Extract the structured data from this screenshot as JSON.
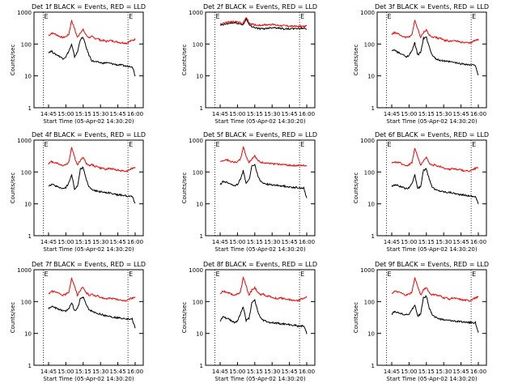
{
  "chart_data": [
    {
      "type": "line",
      "title": "Det 1f BLACK = Events, RED = LLD",
      "xlabel": "Start Time (05-Apr-02 14:30:20)",
      "ylabel": "Counts/sec",
      "log_y": true,
      "ylim": [
        1,
        1000
      ],
      "y_ticks": [
        "1",
        "10",
        "100",
        "1000"
      ],
      "x_ticks": [
        "14:45",
        "15:00",
        "15:15",
        "15:30",
        "15:45",
        "16:00"
      ],
      "dotted_lines": [
        0.085,
        0.86
      ],
      "edge_markers": [
        "E",
        "E"
      ],
      "series": [
        {
          "color": "#ff0000",
          "values": [
            180,
            220,
            210,
            190,
            170,
            160,
            170,
            200,
            550,
            300,
            160,
            230,
            280,
            190,
            160,
            170,
            150,
            150,
            130,
            130,
            120,
            130,
            125,
            120,
            115,
            110,
            110,
            105,
            120,
            130,
            140
          ]
        },
        {
          "color": "#000000",
          "values": [
            55,
            60,
            50,
            45,
            40,
            35,
            40,
            60,
            95,
            40,
            55,
            140,
            160,
            80,
            45,
            30,
            28,
            27,
            26,
            25,
            26,
            25,
            24,
            23,
            22,
            22,
            21,
            20,
            20,
            20,
            10
          ]
        }
      ]
    },
    {
      "type": "line",
      "title": "Det 2f BLACK = Events, RED = LLD",
      "xlabel": "Start Time (05-Apr-02 14:30:20)",
      "ylabel": "Counts/sec",
      "log_y": true,
      "ylim": [
        1,
        1000
      ],
      "y_ticks": [
        "1",
        "10",
        "100",
        "1000"
      ],
      "x_ticks": [
        "14:45",
        "15:00",
        "15:15",
        "15:30",
        "15:45",
        "16:00"
      ],
      "dotted_lines": [
        0.085,
        0.86
      ],
      "edge_markers": [
        "E",
        "E"
      ],
      "series": [
        {
          "color": "#ff0000",
          "values": [
            420,
            450,
            470,
            490,
            500,
            500,
            490,
            470,
            450,
            700,
            460,
            420,
            400,
            390,
            390,
            400,
            400,
            410,
            410,
            400,
            390,
            380,
            380,
            370,
            370,
            360,
            360,
            360,
            360,
            360,
            360
          ]
        },
        {
          "color": "#000000",
          "values": [
            380,
            400,
            420,
            440,
            460,
            460,
            450,
            420,
            400,
            620,
            400,
            360,
            330,
            310,
            300,
            300,
            310,
            320,
            330,
            330,
            320,
            310,
            300,
            300,
            300,
            300,
            300,
            310,
            310,
            310,
            300
          ]
        }
      ]
    },
    {
      "type": "line",
      "title": "Det 3f BLACK = Events, RED = LLD",
      "xlabel": "Start Time (05-Apr-02 14:30:20)",
      "ylabel": "Counts/sec",
      "log_y": true,
      "ylim": [
        1,
        1000
      ],
      "y_ticks": [
        "1",
        "10",
        "100",
        "1000"
      ],
      "x_ticks": [
        "14:45",
        "15:00",
        "15:15",
        "15:30",
        "15:45",
        "16:00"
      ],
      "dotted_lines": [
        0.085,
        0.86
      ],
      "edge_markers": [
        "E",
        "E"
      ],
      "series": [
        {
          "color": "#ff0000",
          "values": [
            200,
            230,
            210,
            190,
            170,
            160,
            170,
            200,
            550,
            300,
            160,
            230,
            280,
            190,
            160,
            170,
            150,
            150,
            130,
            130,
            120,
            130,
            125,
            120,
            115,
            110,
            110,
            105,
            120,
            130,
            140
          ]
        },
        {
          "color": "#000000",
          "values": [
            60,
            65,
            55,
            50,
            45,
            40,
            45,
            60,
            110,
            45,
            55,
            150,
            160,
            80,
            45,
            35,
            32,
            30,
            30,
            28,
            28,
            27,
            26,
            25,
            24,
            24,
            23,
            22,
            22,
            22,
            10
          ]
        }
      ]
    },
    {
      "type": "line",
      "title": "Det 4f BLACK = Events, RED = LLD",
      "xlabel": "Start Time (05-Apr-02 14:30:20)",
      "ylabel": "Counts/sec",
      "log_y": true,
      "ylim": [
        1,
        1000
      ],
      "y_ticks": [
        "1",
        "10",
        "100",
        "1000"
      ],
      "x_ticks": [
        "14:45",
        "15:00",
        "15:15",
        "15:30",
        "15:45",
        "16:00"
      ],
      "dotted_lines": [
        0.085,
        0.86
      ],
      "edge_markers": [
        "E",
        "E"
      ],
      "series": [
        {
          "color": "#ff0000",
          "values": [
            180,
            210,
            200,
            190,
            170,
            160,
            170,
            200,
            600,
            300,
            160,
            230,
            290,
            190,
            160,
            170,
            150,
            150,
            130,
            130,
            120,
            130,
            125,
            120,
            115,
            110,
            110,
            105,
            120,
            130,
            140
          ]
        },
        {
          "color": "#000000",
          "values": [
            35,
            40,
            38,
            35,
            32,
            30,
            32,
            45,
            80,
            30,
            35,
            120,
            140,
            60,
            35,
            28,
            26,
            25,
            24,
            23,
            23,
            22,
            21,
            20,
            19,
            19,
            18,
            18,
            17,
            17,
            10
          ]
        }
      ]
    },
    {
      "type": "line",
      "title": "Det 5f BLACK = Events, RED = LLD",
      "xlabel": "Start Time (05-Apr-02 14:30:20)",
      "ylabel": "Counts/sec",
      "log_y": true,
      "ylim": [
        1,
        1000
      ],
      "y_ticks": [
        "1",
        "10",
        "100",
        "1000"
      ],
      "x_ticks": [
        "14:45",
        "15:00",
        "15:15",
        "15:30",
        "15:45",
        "16:00"
      ],
      "dotted_lines": [
        0.085,
        0.86
      ],
      "edge_markers": [
        "E",
        "E"
      ],
      "series": [
        {
          "color": "#ff0000",
          "values": [
            200,
            230,
            240,
            230,
            210,
            200,
            210,
            250,
            600,
            320,
            200,
            260,
            330,
            230,
            200,
            200,
            190,
            185,
            180,
            180,
            175,
            175,
            170,
            165,
            165,
            160,
            160,
            160,
            160,
            160,
            160
          ]
        },
        {
          "color": "#000000",
          "values": [
            40,
            50,
            48,
            45,
            40,
            38,
            40,
            60,
            110,
            45,
            55,
            150,
            170,
            80,
            50,
            45,
            42,
            40,
            40,
            38,
            38,
            37,
            36,
            35,
            34,
            33,
            33,
            32,
            32,
            31,
            15
          ]
        }
      ]
    },
    {
      "type": "line",
      "title": "Det 6f BLACK = Events, RED = LLD",
      "xlabel": "Start Time (05-Apr-02 14:30:20)",
      "ylabel": "Counts/sec",
      "log_y": true,
      "ylim": [
        1,
        1000
      ],
      "y_ticks": [
        "1",
        "10",
        "100",
        "1000"
      ],
      "x_ticks": [
        "14:45",
        "15:00",
        "15:15",
        "15:30",
        "15:45",
        "16:00"
      ],
      "dotted_lines": [
        0.085,
        0.86
      ],
      "edge_markers": [
        "E",
        "E"
      ],
      "series": [
        {
          "color": "#ff0000",
          "values": [
            180,
            210,
            200,
            190,
            170,
            160,
            170,
            200,
            550,
            300,
            160,
            230,
            280,
            190,
            160,
            170,
            150,
            150,
            130,
            130,
            120,
            130,
            125,
            120,
            115,
            110,
            110,
            105,
            120,
            130,
            140
          ]
        },
        {
          "color": "#000000",
          "values": [
            35,
            40,
            38,
            35,
            32,
            30,
            32,
            45,
            80,
            30,
            35,
            110,
            130,
            60,
            35,
            28,
            26,
            25,
            24,
            23,
            23,
            22,
            21,
            20,
            19,
            19,
            18,
            18,
            17,
            17,
            10
          ]
        }
      ]
    },
    {
      "type": "line",
      "title": "Det 7f BLACK = Events, RED = LLD",
      "xlabel": "Start Time (05-Apr-02 14:30:20)",
      "ylabel": "Counts/sec",
      "log_y": true,
      "ylim": [
        1,
        1000
      ],
      "y_ticks": [
        "1",
        "10",
        "100",
        "1000"
      ],
      "x_ticks": [
        "14:45",
        "15:00",
        "15:15",
        "15:30",
        "15:45",
        "16:00"
      ],
      "dotted_lines": [
        0.085,
        0.86
      ],
      "edge_markers": [
        "E",
        "E"
      ],
      "series": [
        {
          "color": "#ff0000",
          "values": [
            180,
            210,
            200,
            190,
            170,
            160,
            170,
            200,
            550,
            300,
            160,
            230,
            280,
            190,
            160,
            170,
            150,
            150,
            130,
            130,
            120,
            130,
            125,
            120,
            115,
            110,
            110,
            105,
            120,
            130,
            140
          ]
        },
        {
          "color": "#000000",
          "values": [
            60,
            70,
            65,
            60,
            55,
            50,
            50,
            60,
            95,
            50,
            60,
            120,
            140,
            80,
            55,
            50,
            45,
            42,
            40,
            38,
            36,
            35,
            33,
            32,
            31,
            30,
            30,
            29,
            28,
            28,
            15
          ]
        }
      ]
    },
    {
      "type": "line",
      "title": "Det 8f BLACK = Events, RED = LLD",
      "xlabel": "Start Time (05-Apr-02 14:30:20)",
      "ylabel": "Counts/sec",
      "log_y": true,
      "ylim": [
        1,
        1000
      ],
      "y_ticks": [
        "1",
        "10",
        "100",
        "1000"
      ],
      "x_ticks": [
        "14:45",
        "15:00",
        "15:15",
        "15:30",
        "15:45",
        "16:00"
      ],
      "dotted_lines": [
        0.085,
        0.86
      ],
      "edge_markers": [
        "E",
        "E"
      ],
      "series": [
        {
          "color": "#ff0000",
          "values": [
            180,
            210,
            200,
            190,
            170,
            160,
            170,
            200,
            550,
            300,
            160,
            230,
            280,
            190,
            160,
            170,
            150,
            150,
            130,
            130,
            120,
            130,
            125,
            120,
            115,
            110,
            110,
            105,
            120,
            130,
            140
          ]
        },
        {
          "color": "#000000",
          "values": [
            25,
            35,
            30,
            28,
            25,
            22,
            25,
            40,
            70,
            25,
            30,
            90,
            110,
            50,
            30,
            26,
            24,
            22,
            22,
            21,
            21,
            20,
            20,
            19,
            19,
            18,
            18,
            17,
            17,
            17,
            10
          ]
        }
      ]
    },
    {
      "type": "line",
      "title": "Det 9f BLACK = Events, RED = LLD",
      "xlabel": "Start Time (05-Apr-02 14:30:20)",
      "ylabel": "Counts/sec",
      "log_y": true,
      "ylim": [
        1,
        1000
      ],
      "y_ticks": [
        "1",
        "10",
        "100",
        "1000"
      ],
      "x_ticks": [
        "14:45",
        "15:00",
        "15:15",
        "15:30",
        "15:45",
        "16:00"
      ],
      "dotted_lines": [
        0.085,
        0.86
      ],
      "edge_markers": [
        "E",
        "E"
      ],
      "series": [
        {
          "color": "#ff0000",
          "values": [
            180,
            210,
            200,
            190,
            170,
            160,
            170,
            200,
            550,
            300,
            160,
            230,
            280,
            190,
            160,
            170,
            150,
            150,
            130,
            130,
            120,
            130,
            125,
            120,
            115,
            110,
            110,
            105,
            120,
            130,
            140
          ]
        },
        {
          "color": "#000000",
          "values": [
            40,
            50,
            45,
            42,
            40,
            38,
            40,
            55,
            80,
            35,
            40,
            130,
            150,
            60,
            40,
            32,
            30,
            28,
            27,
            26,
            26,
            25,
            24,
            24,
            23,
            23,
            22,
            22,
            22,
            22,
            10
          ]
        }
      ]
    }
  ]
}
